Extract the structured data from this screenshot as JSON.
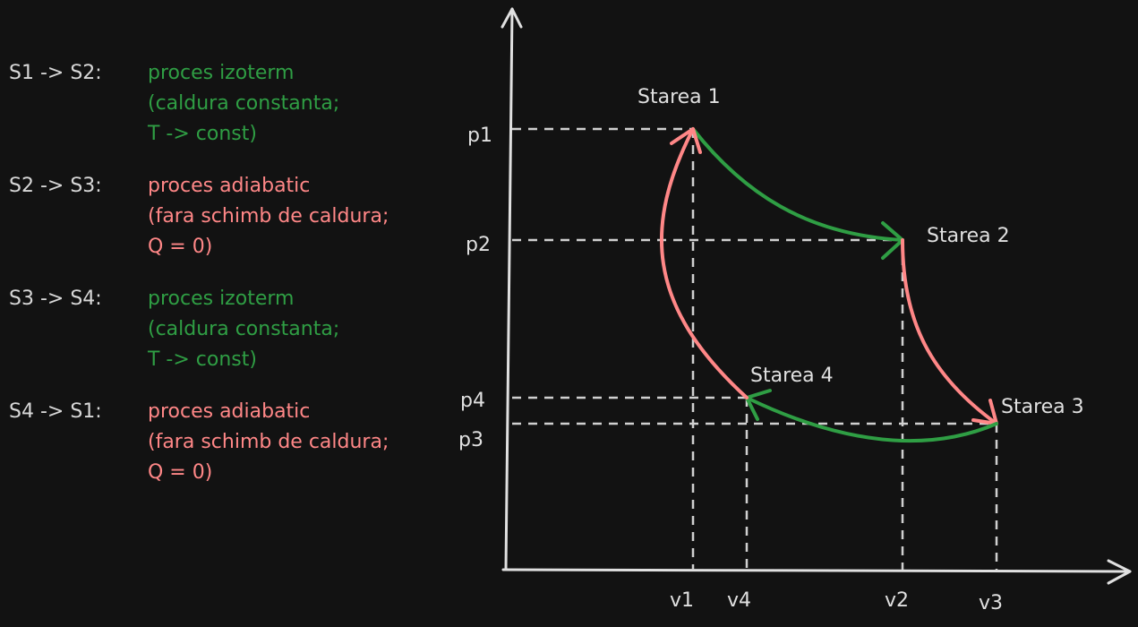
{
  "legend": [
    {
      "key": "S1 -> S2:",
      "lines": [
        "proces izoterm",
        "(caldura constanta;",
        "T -> const)"
      ],
      "color": "green"
    },
    {
      "key": "S2 -> S3:",
      "lines": [
        "proces adiabatic",
        "(fara schimb de caldura;",
        "Q = 0)"
      ],
      "color": "red"
    },
    {
      "key": "S3 -> S4:",
      "lines": [
        "proces izoterm",
        "(caldura constanta;",
        "T -> const)"
      ],
      "color": "green"
    },
    {
      "key": "S4 -> S1:",
      "lines": [
        "proces adiabatic",
        "(fara schimb de caldura;",
        "Q = 0)"
      ],
      "color": "red"
    }
  ],
  "states": {
    "s1": "Starea 1",
    "s2": "Starea 2",
    "s3": "Starea 3",
    "s4": "Starea 4"
  },
  "pressure_labels": {
    "p1": "p1",
    "p2": "p2",
    "p3": "p3",
    "p4": "p4"
  },
  "volume_labels": {
    "v1": "v1",
    "v2": "v2",
    "v3": "v3",
    "v4": "v4"
  },
  "colors": {
    "background": "#121212",
    "axis": "#e0e0e0",
    "dashed": "#d0d0d0",
    "isothermal": "#2f9e44",
    "adiabatic": "#ff8787",
    "text": "#e0e0e0"
  }
}
